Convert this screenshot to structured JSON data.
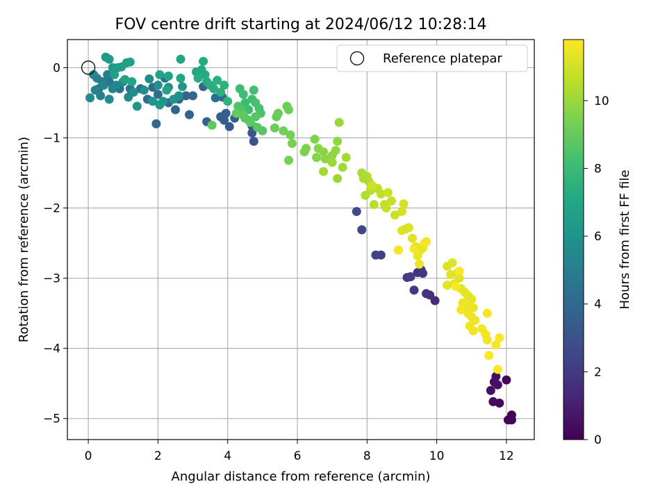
{
  "chart_data": {
    "type": "scatter",
    "title": "FOV centre drift starting at 2024/06/12 10:28:14",
    "xlabel": "Angular distance from reference (arcmin)",
    "ylabel": "Rotation from reference (arcmin)",
    "xlim": [
      -0.6,
      12.8
    ],
    "ylim": [
      -5.3,
      0.4
    ],
    "xticks": [
      0,
      2,
      4,
      6,
      8,
      10,
      12
    ],
    "yticks": [
      0,
      -1,
      -2,
      -3,
      -4,
      -5
    ],
    "xtick_labels": [
      "0",
      "2",
      "4",
      "6",
      "8",
      "10",
      "12"
    ],
    "ytick_labels": [
      "0",
      "−1",
      "−2",
      "−3",
      "−4",
      "−5"
    ],
    "grid": true,
    "legend": {
      "position": "top-right",
      "entries": [
        {
          "label": "Reference platepar",
          "marker": "open-circle"
        }
      ]
    },
    "reference_point": {
      "x": 0,
      "y": 0
    },
    "colorbar": {
      "label": "Hours from first FF file",
      "colormap": "viridis",
      "range": [
        0,
        11.8
      ],
      "ticks": [
        0,
        2,
        4,
        6,
        8,
        10
      ],
      "tick_labels": [
        "0",
        "2",
        "4",
        "6",
        "8",
        "10"
      ]
    },
    "points": [
      [
        12.15,
        -4.95,
        0.05
      ],
      [
        12.05,
        -5.02,
        0.1
      ],
      [
        12.15,
        -5.02,
        0.15
      ],
      [
        12.0,
        -4.45,
        0.2
      ],
      [
        11.8,
        -4.78,
        0.3
      ],
      [
        11.62,
        -4.76,
        0.35
      ],
      [
        11.65,
        -4.48,
        0.4
      ],
      [
        11.7,
        -4.4,
        0.45
      ],
      [
        11.55,
        -4.6,
        0.5
      ],
      [
        11.75,
        -4.52,
        0.55
      ],
      [
        9.95,
        -3.32,
        1.5
      ],
      [
        9.8,
        -3.24,
        1.6
      ],
      [
        9.7,
        -3.22,
        1.7
      ],
      [
        9.45,
        -2.92,
        1.75
      ],
      [
        9.55,
        -2.88,
        1.8
      ],
      [
        9.6,
        -2.93,
        1.85
      ],
      [
        9.35,
        -3.17,
        1.9
      ],
      [
        9.15,
        -2.99,
        2.0
      ],
      [
        9.25,
        -2.98,
        2.1
      ],
      [
        8.4,
        -2.67,
        2.2
      ],
      [
        8.25,
        -2.67,
        2.3
      ],
      [
        7.85,
        -2.31,
        2.45
      ],
      [
        7.7,
        -2.05,
        2.55
      ],
      [
        4.75,
        -1.05,
        3.0
      ],
      [
        4.7,
        -0.93,
        3.1
      ],
      [
        4.7,
        -0.83,
        3.2
      ],
      [
        4.05,
        -0.84,
        3.3
      ],
      [
        3.9,
        -0.75,
        3.4
      ],
      [
        3.8,
        -0.7,
        3.5
      ],
      [
        4.2,
        -0.72,
        3.55
      ],
      [
        3.95,
        -0.65,
        3.6
      ],
      [
        3.4,
        -0.77,
        3.65
      ],
      [
        2.9,
        -0.67,
        3.7
      ],
      [
        2.8,
        -0.4,
        3.75
      ],
      [
        3.0,
        -0.4,
        3.8
      ],
      [
        3.3,
        -0.27,
        3.85
      ],
      [
        2.5,
        -0.6,
        3.9
      ],
      [
        2.6,
        -0.45,
        3.95
      ],
      [
        1.95,
        -0.8,
        4.0
      ],
      [
        1.85,
        -0.28,
        4.05
      ],
      [
        2.3,
        -0.5,
        4.1
      ],
      [
        1.7,
        -0.45,
        4.15
      ],
      [
        1.5,
        -0.3,
        4.2
      ],
      [
        3.65,
        -0.43,
        4.25
      ],
      [
        3.85,
        -0.42,
        4.3
      ],
      [
        2.0,
        -0.38,
        4.35
      ],
      [
        2.2,
        -0.15,
        4.4
      ],
      [
        1.2,
        -0.3,
        4.45
      ],
      [
        0.9,
        -0.3,
        4.5
      ],
      [
        0.6,
        -0.2,
        4.55
      ],
      [
        0.3,
        -0.3,
        4.6
      ],
      [
        0.4,
        -0.2,
        5.0
      ],
      [
        0.25,
        -0.15,
        5.05
      ],
      [
        0.55,
        -0.1,
        5.1
      ],
      [
        0.35,
        -0.4,
        5.15
      ],
      [
        0.2,
        -0.32,
        5.2
      ],
      [
        0.15,
        -0.1,
        5.25
      ],
      [
        0.45,
        -0.25,
        5.3
      ],
      [
        0.7,
        -0.3,
        5.35
      ],
      [
        0.8,
        -0.25,
        5.4
      ],
      [
        1.0,
        -0.2,
        5.45
      ],
      [
        1.15,
        -0.42,
        5.5
      ],
      [
        0.05,
        -0.43,
        5.55
      ],
      [
        0.6,
        -0.45,
        5.6
      ],
      [
        1.3,
        -0.35,
        5.65
      ],
      [
        1.6,
        -0.32,
        5.7
      ],
      [
        1.75,
        -0.16,
        5.75
      ],
      [
        2.0,
        -0.25,
        5.8
      ],
      [
        2.3,
        -0.28,
        5.85
      ],
      [
        2.6,
        -0.4,
        5.9
      ],
      [
        2.15,
        -0.48,
        5.95
      ],
      [
        2.45,
        -0.45,
        6.0
      ],
      [
        1.85,
        -0.48,
        6.05
      ],
      [
        1.4,
        -0.55,
        6.1
      ],
      [
        2.05,
        -0.53,
        6.15
      ],
      [
        2.7,
        -0.27,
        6.2
      ],
      [
        0.5,
        0.15,
        6.3
      ],
      [
        0.6,
        0.12,
        6.35
      ],
      [
        0.7,
        0.0,
        6.4
      ],
      [
        0.85,
        0.0,
        6.45
      ],
      [
        0.95,
        0.01,
        6.5
      ],
      [
        1.1,
        0.07,
        6.55
      ],
      [
        1.2,
        0.08,
        6.6
      ],
      [
        0.75,
        -0.1,
        6.65
      ],
      [
        1.05,
        -0.17,
        6.7
      ],
      [
        1.25,
        -0.2,
        6.75
      ],
      [
        2.25,
        -0.32,
        6.8
      ],
      [
        2.3,
        -0.12,
        6.85
      ],
      [
        2.05,
        -0.1,
        6.9
      ],
      [
        2.65,
        0.12,
        6.95
      ],
      [
        2.65,
        -0.15,
        7.0
      ],
      [
        3.1,
        -0.06,
        7.05
      ],
      [
        3.25,
        -0.03,
        7.1
      ],
      [
        3.35,
        -0.1,
        7.15
      ],
      [
        3.4,
        -0.2,
        7.2
      ],
      [
        3.3,
        0.09,
        7.25
      ],
      [
        3.15,
        -0.15,
        7.3
      ],
      [
        3.5,
        -0.25,
        7.35
      ],
      [
        3.6,
        -0.3,
        7.4
      ],
      [
        3.7,
        -0.18,
        7.45
      ],
      [
        3.8,
        -0.35,
        7.5
      ],
      [
        3.9,
        -0.25,
        7.55
      ],
      [
        4.0,
        -0.48,
        7.6
      ],
      [
        4.35,
        -0.3,
        8.0
      ],
      [
        4.45,
        -0.38,
        8.05
      ],
      [
        4.5,
        -0.5,
        8.1
      ],
      [
        4.6,
        -0.6,
        8.15
      ],
      [
        4.7,
        -0.45,
        8.2
      ],
      [
        4.75,
        -0.32,
        8.25
      ],
      [
        4.8,
        -0.5,
        8.3
      ],
      [
        4.9,
        -0.58,
        8.35
      ],
      [
        4.95,
        -0.65,
        8.4
      ],
      [
        4.4,
        -0.6,
        8.45
      ],
      [
        4.3,
        -0.55,
        8.5
      ],
      [
        4.5,
        -0.72,
        8.55
      ],
      [
        4.6,
        -0.75,
        8.6
      ],
      [
        4.8,
        -0.7,
        8.65
      ],
      [
        4.85,
        -0.85,
        8.7
      ],
      [
        5.0,
        -0.9,
        8.75
      ],
      [
        4.65,
        -0.78,
        8.8
      ],
      [
        4.45,
        -0.68,
        8.85
      ],
      [
        3.55,
        -0.82,
        8.9
      ],
      [
        4.25,
        -0.65,
        8.95
      ],
      [
        5.4,
        -0.7,
        9.0
      ],
      [
        5.45,
        -0.65,
        9.05
      ],
      [
        5.35,
        -0.86,
        9.1
      ],
      [
        5.7,
        -0.55,
        9.15
      ],
      [
        5.75,
        -0.6,
        9.2
      ],
      [
        5.6,
        -0.9,
        9.25
      ],
      [
        5.8,
        -0.96,
        9.3
      ],
      [
        5.85,
        -1.08,
        9.35
      ],
      [
        5.75,
        -1.32,
        9.4
      ],
      [
        6.2,
        -1.2,
        9.45
      ],
      [
        6.25,
        -1.15,
        9.5
      ],
      [
        6.5,
        -1.02,
        9.55
      ],
      [
        6.55,
        -1.28,
        9.6
      ],
      [
        6.6,
        -1.15,
        9.65
      ],
      [
        6.75,
        -1.2,
        9.7
      ],
      [
        6.8,
        -1.3,
        9.75
      ],
      [
        7.0,
        -1.25,
        9.8
      ],
      [
        7.1,
        -1.18,
        9.85
      ],
      [
        7.15,
        -1.05,
        9.9
      ],
      [
        7.2,
        -0.78,
        9.95
      ],
      [
        7.0,
        -1.35,
        10.0
      ],
      [
        7.15,
        -1.58,
        10.05
      ],
      [
        7.3,
        -1.42,
        10.1
      ],
      [
        6.75,
        -1.48,
        10.15
      ],
      [
        7.4,
        -1.28,
        10.2
      ],
      [
        7.85,
        -1.5,
        10.25
      ],
      [
        7.9,
        -1.58,
        10.3
      ],
      [
        8.0,
        -1.55,
        10.35
      ],
      [
        8.05,
        -1.62,
        10.4
      ],
      [
        7.95,
        -1.82,
        10.45
      ],
      [
        8.1,
        -1.75,
        10.5
      ],
      [
        8.2,
        -1.95,
        10.55
      ],
      [
        8.3,
        -1.72,
        10.6
      ],
      [
        8.4,
        -1.8,
        10.65
      ],
      [
        8.5,
        -1.95,
        10.7
      ],
      [
        8.55,
        -2.0,
        10.75
      ],
      [
        8.7,
        -1.9,
        10.8
      ],
      [
        8.8,
        -2.1,
        10.85
      ],
      [
        8.6,
        -1.78,
        10.9
      ],
      [
        8.15,
        -1.68,
        10.95
      ],
      [
        9.0,
        -2.05,
        11.0
      ],
      [
        9.05,
        -1.94,
        11.05
      ],
      [
        9.1,
        -2.3,
        11.1
      ],
      [
        9.0,
        -2.32,
        11.15
      ],
      [
        9.2,
        -2.28,
        11.2
      ],
      [
        9.3,
        -2.43,
        11.25
      ],
      [
        9.4,
        -2.55,
        11.3
      ],
      [
        9.5,
        -2.62,
        11.35
      ],
      [
        9.6,
        -2.57,
        11.4
      ],
      [
        9.45,
        -2.68,
        11.45
      ],
      [
        9.5,
        -2.8,
        11.5
      ],
      [
        9.7,
        -2.48,
        11.55
      ],
      [
        9.65,
        -2.5,
        11.6
      ],
      [
        9.35,
        -2.58,
        11.62
      ],
      [
        8.9,
        -2.6,
        11.64
      ]
    ],
    "points_late": [
      [
        10.3,
        -2.83,
        11.2
      ],
      [
        10.4,
        -2.95,
        11.22
      ],
      [
        10.45,
        -2.78,
        11.24
      ],
      [
        10.6,
        -2.92,
        11.26
      ],
      [
        10.65,
        -3.0,
        11.28
      ],
      [
        10.3,
        -3.1,
        11.3
      ],
      [
        10.5,
        -3.08,
        11.32
      ],
      [
        10.7,
        -3.15,
        11.34
      ],
      [
        10.8,
        -3.2,
        11.36
      ],
      [
        10.9,
        -3.25,
        11.38
      ],
      [
        11.0,
        -3.3,
        11.4
      ],
      [
        11.05,
        -3.42,
        11.42
      ],
      [
        10.75,
        -3.35,
        11.44
      ],
      [
        10.85,
        -3.4,
        11.46
      ],
      [
        10.9,
        -3.5,
        11.48
      ],
      [
        11.0,
        -3.55,
        11.5
      ],
      [
        11.1,
        -3.6,
        11.52
      ],
      [
        10.95,
        -3.68,
        11.54
      ],
      [
        11.05,
        -3.75,
        11.56
      ],
      [
        10.7,
        -3.45,
        11.58
      ],
      [
        11.3,
        -3.72,
        11.6
      ],
      [
        11.4,
        -3.8,
        11.62
      ],
      [
        11.45,
        -3.5,
        11.64
      ],
      [
        11.45,
        -3.88,
        11.66
      ],
      [
        11.7,
        -3.95,
        11.68
      ],
      [
        11.8,
        -3.85,
        11.7
      ],
      [
        11.5,
        -4.1,
        11.72
      ],
      [
        11.75,
        -4.3,
        11.74
      ],
      [
        10.65,
        -2.9,
        11.76
      ],
      [
        10.55,
        -3.12,
        11.78
      ]
    ]
  }
}
